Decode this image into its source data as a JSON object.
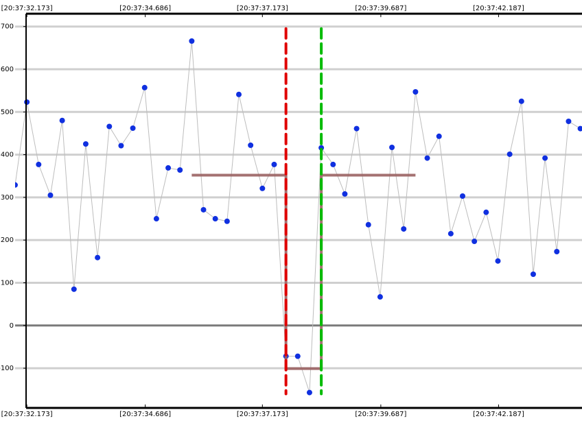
{
  "chart_data": {
    "type": "line",
    "x": [
      31.923,
      32.173,
      32.423,
      32.673,
      32.923,
      33.173,
      33.423,
      33.673,
      33.923,
      34.173,
      34.423,
      34.673,
      34.923,
      35.173,
      35.423,
      35.673,
      35.923,
      36.173,
      36.423,
      36.673,
      36.923,
      37.173,
      37.423,
      37.673,
      37.923,
      38.173,
      38.423,
      38.673,
      38.923,
      39.173,
      39.423,
      39.673,
      39.923,
      40.173,
      40.423,
      40.673,
      40.923,
      41.173,
      41.423,
      41.673,
      41.923,
      42.173,
      42.423,
      42.673,
      42.923,
      43.173,
      43.423,
      43.673,
      43.923
    ],
    "series": [
      {
        "color": "#bdbdbd",
        "marker_color": "#1030e0",
        "markers": true,
        "values": [
          329,
          523,
          377,
          305,
          480,
          85,
          425,
          159,
          466,
          421,
          462,
          557,
          250,
          369,
          364,
          666,
          271,
          250,
          244,
          541,
          422,
          321,
          377,
          -72,
          -72,
          -157,
          416,
          377,
          308,
          461,
          236,
          67,
          417,
          226,
          547,
          392,
          443,
          215,
          303,
          197,
          265,
          151,
          401,
          525,
          120,
          392,
          173,
          478,
          461
        ]
      }
    ],
    "steps": {
      "color": "#9a6262",
      "x": [
        35.673,
        37.673,
        37.673,
        38.423,
        38.423,
        40.423
      ],
      "values": [
        352,
        352,
        -101,
        -101,
        352,
        352
      ]
    },
    "vlines": [
      {
        "x": 37.673,
        "color": "#e00000",
        "y": [
          -160,
          695
        ]
      },
      {
        "x": 38.423,
        "color": "#00bb00",
        "y": [
          -160,
          695
        ]
      }
    ],
    "xlim": [
      31.923,
      43.958
    ],
    "xticks": [
      {
        "value": 32.173,
        "label": "[20:37:32.173]"
      },
      {
        "value": 34.686,
        "label": "[20:37:34.686]"
      },
      {
        "value": 37.173,
        "label": "[20:37:37.173]"
      },
      {
        "value": 39.687,
        "label": "[20:37:39.687]"
      },
      {
        "value": 42.187,
        "label": "[20:37:42.187]"
      }
    ],
    "ylim": [
      -193,
      730
    ],
    "yticks": [
      -100,
      0,
      100,
      200,
      300,
      400,
      500,
      600,
      700
    ],
    "grid": true
  }
}
